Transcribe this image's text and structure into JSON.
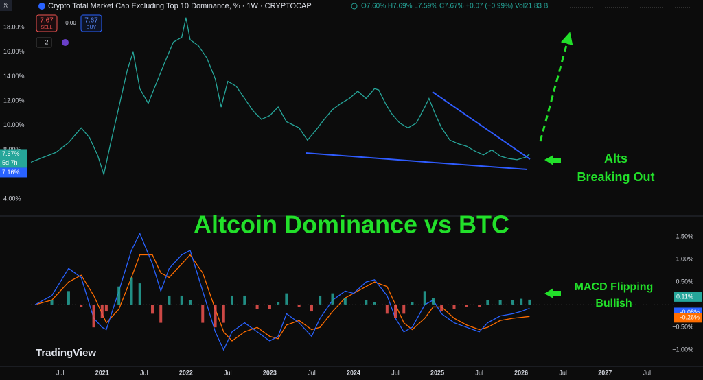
{
  "header": {
    "corner": "%",
    "title": "Crypto Total Market Cap Excluding Top 10 Dominance, % · 1W · CRYPTOCAP",
    "ohlc": "O7.60% H7.69% L7.59% C7.67% +0.07 (+0.99%) Vol21.83 B"
  },
  "order_panel": {
    "sell_price": "7.67",
    "sell": "SELL",
    "spread": "0.00",
    "buy_price": "7.67",
    "buy": "BUY",
    "count": "2"
  },
  "badges": {
    "last": "7.67%",
    "countdown": "5d 7h",
    "low": "7.16%",
    "histogram": "0.11%",
    "macd": "-0.08%",
    "signal": "-0.26%"
  },
  "annotations": {
    "title": "Altcoin Dominance vs BTC",
    "breakout": [
      "Alts",
      "Breaking Out"
    ],
    "macd": [
      "MACD Flipping",
      "Bullish"
    ],
    "brand": "TradingView"
  },
  "chart_data": [
    {
      "type": "line",
      "color": "#26a69a",
      "x": [
        2020.15,
        2020.3,
        2020.45,
        2020.6,
        2020.75,
        2020.85,
        2020.95,
        2021.02,
        2021.1,
        2021.2,
        2021.3,
        2021.37,
        2021.45,
        2021.55,
        2021.65,
        2021.75,
        2021.85,
        2021.95,
        2022.0,
        2022.05,
        2022.15,
        2022.25,
        2022.35,
        2022.42,
        2022.5,
        2022.6,
        2022.7,
        2022.8,
        2022.9,
        2023.0,
        2023.1,
        2023.2,
        2023.35,
        2023.45,
        2023.55,
        2023.65,
        2023.75,
        2023.85,
        2023.95,
        2024.05,
        2024.15,
        2024.25,
        2024.3,
        2024.38,
        2024.45,
        2024.55,
        2024.65,
        2024.75,
        2024.85,
        2024.9,
        2024.97,
        2025.05,
        2025.15,
        2025.25,
        2025.35,
        2025.45,
        2025.55,
        2025.65,
        2025.75,
        2025.85,
        2025.95,
        2026.05,
        2026.1
      ],
      "values": [
        7.0,
        7.4,
        7.8,
        8.6,
        9.8,
        9.0,
        7.5,
        6.0,
        8.5,
        11.5,
        14.5,
        16.0,
        13.0,
        11.8,
        13.5,
        15.2,
        16.8,
        17.2,
        18.8,
        17.0,
        16.5,
        15.5,
        13.8,
        11.5,
        13.6,
        13.2,
        12.2,
        11.2,
        10.5,
        10.8,
        11.5,
        10.3,
        9.8,
        8.8,
        9.6,
        10.5,
        11.3,
        11.8,
        12.2,
        12.8,
        12.2,
        13.0,
        12.9,
        11.8,
        11.0,
        10.2,
        9.8,
        10.2,
        11.5,
        12.2,
        11.0,
        9.8,
        8.8,
        8.5,
        8.3,
        7.9,
        7.6,
        8.0,
        7.5,
        7.3,
        7.2,
        7.4,
        7.67
      ],
      "xlim": [
        2020.15,
        2027.85
      ],
      "ylim": [
        2.6,
        20.24
      ],
      "yticks": [
        {
          "value": 4,
          "label": "4.00%"
        },
        {
          "value": 8,
          "label": "8.00%"
        },
        {
          "value": 10,
          "label": "10.00%"
        },
        {
          "value": 12,
          "label": "12.00%"
        },
        {
          "value": 14,
          "label": "14.00%"
        },
        {
          "value": 16,
          "label": "16.00%"
        },
        {
          "value": 18,
          "label": "18.00%"
        }
      ]
    },
    {
      "type": "macd",
      "x": [
        2020.2,
        2020.4,
        2020.6,
        2020.75,
        2020.9,
        2021.0,
        2021.05,
        2021.2,
        2021.35,
        2021.45,
        2021.6,
        2021.7,
        2021.8,
        2021.95,
        2022.05,
        2022.2,
        2022.35,
        2022.45,
        2022.55,
        2022.7,
        2022.85,
        2023.0,
        2023.1,
        2023.2,
        2023.35,
        2023.5,
        2023.6,
        2023.75,
        2023.9,
        2024.0,
        2024.15,
        2024.25,
        2024.4,
        2024.5,
        2024.6,
        2024.7,
        2024.85,
        2024.95,
        2025.05,
        2025.2,
        2025.35,
        2025.5,
        2025.6,
        2025.75,
        2025.9,
        2026.0,
        2026.1
      ],
      "series": [
        {
          "color": "#2962ff",
          "values": [
            0.0,
            0.2,
            0.8,
            0.6,
            -0.3,
            -0.5,
            -0.55,
            0.3,
            1.2,
            1.57,
            0.9,
            0.3,
            0.8,
            1.1,
            1.2,
            0.3,
            -0.6,
            -1.0,
            -0.6,
            -0.4,
            -0.6,
            -0.8,
            -0.7,
            -0.2,
            -0.4,
            -0.7,
            -0.3,
            0.1,
            0.3,
            0.25,
            0.5,
            0.55,
            0.2,
            -0.3,
            -0.6,
            -0.5,
            0.0,
            0.1,
            -0.2,
            -0.4,
            -0.5,
            -0.6,
            -0.4,
            -0.25,
            -0.2,
            -0.15,
            -0.08
          ]
        },
        {
          "color": "#ff6d00",
          "values": [
            0.0,
            0.1,
            0.5,
            0.65,
            0.2,
            -0.2,
            -0.4,
            -0.1,
            0.6,
            1.1,
            1.1,
            0.7,
            0.6,
            0.9,
            1.1,
            0.7,
            -0.1,
            -0.6,
            -0.8,
            -0.6,
            -0.5,
            -0.7,
            -0.75,
            -0.45,
            -0.35,
            -0.55,
            -0.5,
            -0.15,
            0.15,
            0.25,
            0.4,
            0.5,
            0.4,
            0.0,
            -0.4,
            -0.55,
            -0.3,
            -0.05,
            -0.05,
            -0.3,
            -0.45,
            -0.55,
            -0.5,
            -0.35,
            -0.3,
            -0.28,
            -0.26
          ]
        }
      ],
      "histogram": [
        0.0,
        0.1,
        0.3,
        -0.05,
        -0.5,
        -0.3,
        -0.15,
        0.4,
        0.6,
        0.47,
        -0.2,
        -0.4,
        0.2,
        0.2,
        0.1,
        -0.4,
        -0.5,
        -0.4,
        0.2,
        0.2,
        -0.1,
        -0.1,
        0.05,
        0.25,
        -0.05,
        -0.15,
        0.2,
        0.25,
        0.15,
        0.0,
        0.1,
        0.05,
        -0.2,
        -0.3,
        -0.2,
        0.05,
        0.3,
        0.15,
        -0.15,
        -0.1,
        -0.05,
        -0.05,
        0.1,
        0.1,
        0.1,
        0.13,
        0.11
      ],
      "hist_colors": [
        "#26a69a",
        "#ef5350"
      ],
      "xlim": [
        2020.15,
        2027.85
      ],
      "ylim": [
        -1.33,
        1.91
      ],
      "yticks": [
        {
          "value": 1.5,
          "label": "1.50%"
        },
        {
          "value": 1,
          "label": "1.00%"
        },
        {
          "value": 0.5,
          "label": "0.50%"
        },
        {
          "value": -0.5,
          "label": "−0.50%"
        },
        {
          "value": -1,
          "label": "−1.00%"
        }
      ],
      "xticks": [
        {
          "value": 2020.5,
          "label": "Jul"
        },
        2021,
        {
          "value": 2021.5,
          "label": "Jul"
        },
        2022,
        {
          "value": 2022.5,
          "label": "Jul"
        },
        2023,
        {
          "value": 2023.5,
          "label": "Jul"
        },
        2024,
        {
          "value": 2024.5,
          "label": "Jul"
        },
        2025,
        {
          "value": 2025.5,
          "label": "Jul"
        },
        2026,
        {
          "value": 2026.5,
          "label": "Jul"
        },
        2027,
        {
          "value": 2027.5,
          "label": "Jul"
        }
      ]
    }
  ]
}
